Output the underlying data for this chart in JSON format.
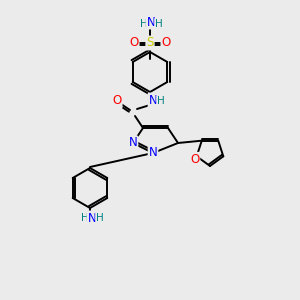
{
  "bg_color": "#ebebeb",
  "atom_colors": {
    "C": "#000000",
    "N": "#0000ff",
    "O": "#ff0000",
    "S": "#cccc00",
    "H": "#008080"
  },
  "figsize": [
    3.0,
    3.0
  ],
  "dpi": 100
}
